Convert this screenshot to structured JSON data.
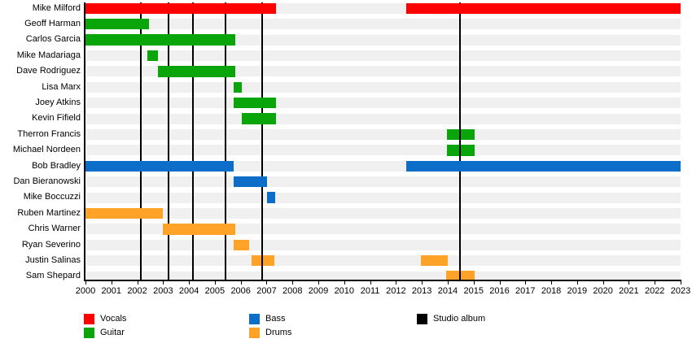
{
  "chart_data": {
    "type": "gantt",
    "title": "",
    "description": "Band members timeline chart: colored horizontal bars show each member's tenure by instrument; black vertical lines mark studio album releases.",
    "x_axis": {
      "min": 2000,
      "max": 2023,
      "tick_years": [
        2000,
        2001,
        2002,
        2003,
        2004,
        2005,
        2006,
        2007,
        2008,
        2009,
        2010,
        2011,
        2012,
        2013,
        2014,
        2015,
        2016,
        2017,
        2018,
        2019,
        2020,
        2021,
        2022,
        2023
      ]
    },
    "rows": [
      {
        "name": "Mike Milford",
        "instrument": "Vocals",
        "segments": [
          [
            2000,
            2007.36
          ],
          [
            2012.39,
            2023.05
          ]
        ],
        "under_album_lines": false
      },
      {
        "name": "Geoff Harman",
        "instrument": "Guitar",
        "segments": [
          [
            2000,
            2002.44
          ]
        ],
        "under_album_lines": false
      },
      {
        "name": "Carlos Garcia",
        "instrument": "Guitar",
        "segments": [
          [
            2000,
            2005.78
          ]
        ],
        "under_album_lines": false
      },
      {
        "name": "Mike Madariaga",
        "instrument": "Guitar",
        "segments": [
          [
            2002.39,
            2002.79
          ]
        ],
        "under_album_lines": false
      },
      {
        "name": "Dave Rodriguez",
        "instrument": "Guitar",
        "segments": [
          [
            2002.8,
            2005.78
          ]
        ],
        "under_album_lines": false
      },
      {
        "name": "Lisa Marx",
        "instrument": "Guitar",
        "segments": [
          [
            2005.73,
            2006.05
          ]
        ],
        "under_album_lines": false
      },
      {
        "name": "Joey Atkins",
        "instrument": "Guitar",
        "segments": [
          [
            2005.74,
            2007.35
          ]
        ],
        "under_album_lines": false
      },
      {
        "name": "Kevin Fifield",
        "instrument": "Guitar",
        "segments": [
          [
            2006.05,
            2007.35
          ]
        ],
        "under_album_lines": false
      },
      {
        "name": "Therron Francis",
        "instrument": "Guitar",
        "segments": [
          [
            2013.96,
            2015.03
          ]
        ],
        "under_album_lines": true
      },
      {
        "name": "Michael Nordeen",
        "instrument": "Guitar",
        "segments": [
          [
            2013.96,
            2015.03
          ]
        ],
        "under_album_lines": true
      },
      {
        "name": "Bob Bradley",
        "instrument": "Bass",
        "segments": [
          [
            2000,
            2005.73
          ],
          [
            2012.39,
            2023.05
          ]
        ],
        "under_album_lines": false
      },
      {
        "name": "Dan Bieranowski",
        "instrument": "Bass",
        "segments": [
          [
            2005.74,
            2007.02
          ]
        ],
        "under_album_lines": false
      },
      {
        "name": "Mike Boccuzzi",
        "instrument": "Bass",
        "segments": [
          [
            2007.02,
            2007.33
          ]
        ],
        "under_album_lines": false
      },
      {
        "name": "Ruben Martinez",
        "instrument": "Drums",
        "segments": [
          [
            2000,
            2003.0
          ]
        ],
        "under_album_lines": false
      },
      {
        "name": "Chris Warner",
        "instrument": "Drums",
        "segments": [
          [
            2003.0,
            2005.79
          ]
        ],
        "under_album_lines": false
      },
      {
        "name": "Ryan Severino",
        "instrument": "Drums",
        "segments": [
          [
            2005.74,
            2006.32
          ]
        ],
        "under_album_lines": false
      },
      {
        "name": "Justin Salinas",
        "instrument": "Drums",
        "segments": [
          [
            2006.41,
            2007.31
          ],
          [
            2012.95,
            2014.0
          ]
        ],
        "under_album_lines": true
      },
      {
        "name": "Sam Shepard",
        "instrument": "Drums",
        "segments": [
          [
            2013.95,
            2015.03
          ]
        ],
        "under_album_lines": true
      }
    ],
    "album_lines": {
      "label": "Studio album",
      "years": [
        2002.13,
        2003.22,
        2004.15,
        2005.41,
        2006.83,
        2014.48
      ]
    },
    "legend": [
      {
        "label": "Vocals",
        "color": "#fe0000"
      },
      {
        "label": "Guitar",
        "color": "#0aa50a"
      },
      {
        "label": "Bass",
        "color": "#0d6ec9"
      },
      {
        "label": "Drums",
        "color": "#fea228"
      },
      {
        "label": "Studio album",
        "color": "#000000"
      }
    ],
    "colors": {
      "Vocals": "#fe0000",
      "Guitar": "#0aa50a",
      "Bass": "#0d6ec9",
      "Drums": "#fea228",
      "album_line": "#000000",
      "row_stripe": "#f0f0f0",
      "axis": "#000000"
    },
    "layout_hints": {
      "legend_position": "bottom",
      "grid": "off",
      "row_count": 18
    }
  }
}
